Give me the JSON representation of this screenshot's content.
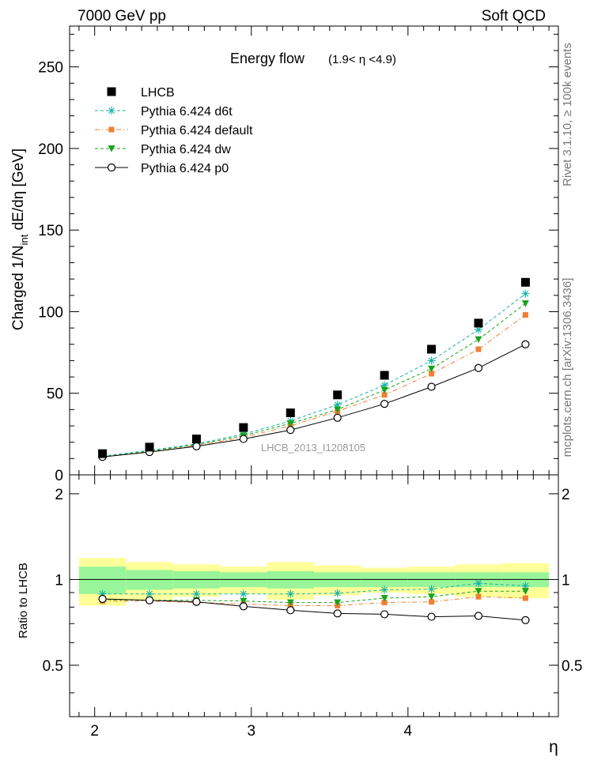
{
  "header": {
    "left": "7000 GeV pp",
    "right": "Soft QCD"
  },
  "side_labels": {
    "rivet": "Rivet 3.1.10, ≥ 100k events",
    "mcplots": "mcplots.cern.ch [arXiv:1306.3436]"
  },
  "chart_data": [
    {
      "type": "scatter",
      "panel": "main",
      "title": "Energy flow",
      "subtitle": "(1.9< η <4.9)",
      "ylabel": "Charged 1/N_int dE/dη [GeV]",
      "ylabel_parts": {
        "pre": "Charged 1/N",
        "sub": "int",
        "post": " dE/dη [GeV]"
      },
      "xlabel": "η",
      "watermark": "LHCB_2013_I1208105",
      "xlim": [
        1.84,
        4.96
      ],
      "ylim": [
        0,
        275
      ],
      "yticks": [
        0,
        50,
        100,
        150,
        200,
        250
      ],
      "x": [
        2.05,
        2.35,
        2.65,
        2.95,
        3.25,
        3.55,
        3.85,
        4.15,
        4.45,
        4.75
      ],
      "series": [
        {
          "name": "LHCB",
          "color": "#000000",
          "marker": "square",
          "line": "none",
          "values": [
            13,
            17,
            22,
            29,
            38,
            49,
            61,
            77,
            93,
            118
          ]
        },
        {
          "name": "Pythia 6.424 d6t",
          "color": "#17b3a8",
          "marker": "star",
          "line": "dashed",
          "values": [
            11.5,
            15,
            19,
            25,
            33,
            43,
            55,
            70,
            89,
            111
          ]
        },
        {
          "name": "Pythia 6.424 default",
          "color": "#f07f33",
          "marker": "square-small",
          "line": "dashdot",
          "values": [
            11,
            14,
            18,
            23,
            30,
            39,
            49,
            62,
            77,
            98
          ]
        },
        {
          "name": "Pythia 6.424 dw",
          "color": "#1aa31a",
          "marker": "triangle-down",
          "line": "dashed",
          "values": [
            11,
            14.5,
            18.5,
            24,
            31.5,
            40,
            52,
            65,
            83,
            105
          ]
        },
        {
          "name": "Pythia 6.424 p0",
          "color": "#000000",
          "marker": "circle-open",
          "line": "solid",
          "values": [
            11,
            14,
            17.5,
            22,
            27.5,
            35,
            43.5,
            54,
            65.5,
            80
          ]
        }
      ]
    },
    {
      "type": "scatter",
      "panel": "ratio",
      "ylabel": "Ratio to LHCB",
      "xlabel": "η",
      "xlim": [
        1.84,
        4.96
      ],
      "ylim": [
        0.33,
        2.33
      ],
      "yticks": [
        0.5,
        1,
        2
      ],
      "ytick_labels": [
        "0.5",
        "1",
        "2"
      ],
      "xticks": [
        2,
        3,
        4
      ],
      "x": [
        2.05,
        2.35,
        2.65,
        2.95,
        3.25,
        3.55,
        3.85,
        4.15,
        4.45,
        4.75
      ],
      "bins": [
        [
          1.9,
          2.2
        ],
        [
          2.2,
          2.5
        ],
        [
          2.5,
          2.8
        ],
        [
          2.8,
          3.1
        ],
        [
          3.1,
          3.4
        ],
        [
          3.4,
          3.7
        ],
        [
          3.7,
          4.0
        ],
        [
          4.0,
          4.3
        ],
        [
          4.3,
          4.6
        ],
        [
          4.6,
          4.9
        ]
      ],
      "band_stat": [
        0.11,
        0.08,
        0.07,
        0.06,
        0.07,
        0.06,
        0.06,
        0.06,
        0.06,
        0.06
      ],
      "band_total": [
        0.19,
        0.15,
        0.13,
        0.11,
        0.15,
        0.12,
        0.1,
        0.11,
        0.13,
        0.14
      ],
      "band_colors": {
        "stat": "#99f599",
        "total": "#ffff99"
      },
      "series": [
        {
          "name": "Pythia 6.424 d6t",
          "values": [
            0.89,
            0.89,
            0.89,
            0.89,
            0.89,
            0.895,
            0.92,
            0.925,
            0.97,
            0.95
          ]
        },
        {
          "name": "Pythia 6.424 default",
          "values": [
            0.84,
            0.84,
            0.83,
            0.82,
            0.81,
            0.81,
            0.83,
            0.835,
            0.87,
            0.86
          ]
        },
        {
          "name": "Pythia 6.424 dw",
          "values": [
            0.85,
            0.845,
            0.845,
            0.84,
            0.83,
            0.83,
            0.86,
            0.87,
            0.91,
            0.91
          ]
        },
        {
          "name": "Pythia 6.424 p0",
          "values": [
            0.855,
            0.845,
            0.835,
            0.805,
            0.78,
            0.76,
            0.755,
            0.74,
            0.745,
            0.72
          ]
        }
      ]
    }
  ]
}
